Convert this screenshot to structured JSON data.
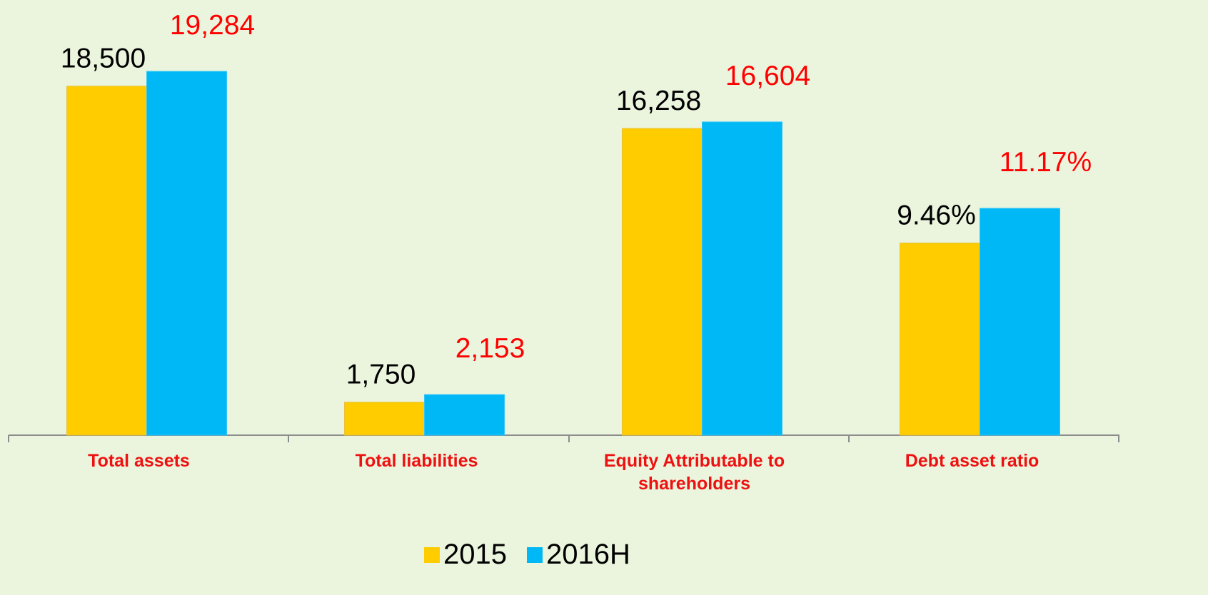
{
  "chart_data": {
    "type": "bar",
    "categories": [
      "Total assets",
      "Total liabilities",
      "Equity Attributable to shareholders",
      "Debt asset ratio"
    ],
    "series": [
      {
        "name": "2015",
        "color": "#ffcc00",
        "values": [
          18500,
          1750,
          16258,
          9.46
        ],
        "value_labels": [
          "18,500",
          "1,750",
          "16,258",
          "9.46%"
        ],
        "label_color": "#000000"
      },
      {
        "name": "2016H",
        "color": "#00b8f5",
        "values": [
          19284,
          2153,
          16604,
          11.17
        ],
        "value_labels": [
          "19,284",
          "2,153",
          "16,604",
          "11.17%"
        ],
        "label_color": "#ff0000"
      }
    ],
    "legend": "bottom"
  }
}
